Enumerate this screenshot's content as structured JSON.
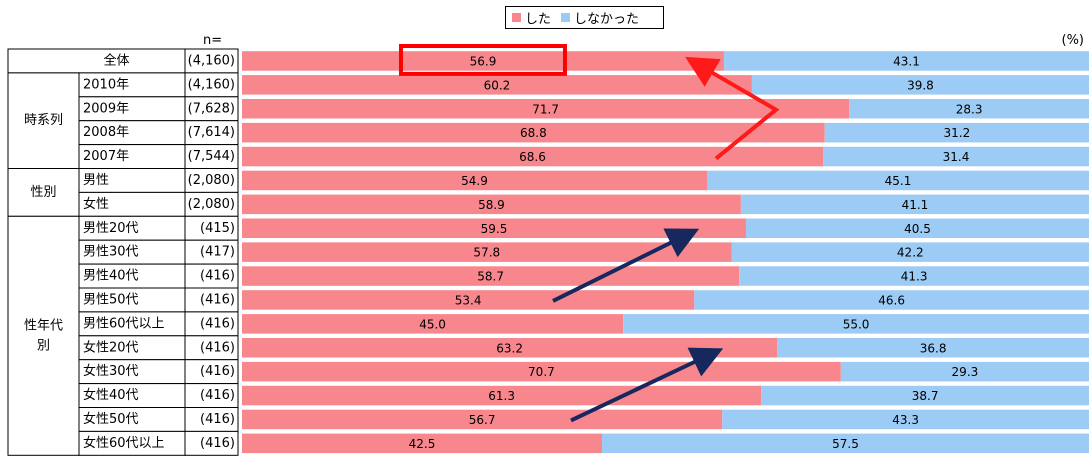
{
  "legend": [
    {
      "label": "した",
      "color": "#f8868d"
    },
    {
      "label": "しなかった",
      "color": "#9ccbf5"
    }
  ],
  "n_label": "n=",
  "unit_label": "(%)",
  "colors": {
    "did": "#f8868d",
    "did_not": "#9ccbf5",
    "highlight": "#ff0000",
    "arrow_red": "#ff1a1a",
    "arrow_navy": "#16285e"
  },
  "groups": [
    {
      "label": "",
      "rows": 1
    },
    {
      "label": "時系列",
      "rows": 4
    },
    {
      "label": "性別",
      "rows": 2
    },
    {
      "label": "性年代別",
      "rows": 10
    }
  ],
  "chart_data": {
    "type": "bar",
    "stacked": true,
    "orientation": "horizontal",
    "unit": "%",
    "categories": [
      "全体",
      "2010年",
      "2009年",
      "2008年",
      "2007年",
      "男性",
      "女性",
      "男性20代",
      "男性30代",
      "男性40代",
      "男性50代",
      "男性60代以上",
      "女性20代",
      "女性30代",
      "女性40代",
      "女性50代",
      "女性60代以上"
    ],
    "n": [
      "(4,160)",
      "(4,160)",
      "(7,628)",
      "(7,614)",
      "(7,544)",
      "(2,080)",
      "(2,080)",
      "(415)",
      "(417)",
      "(416)",
      "(416)",
      "(416)",
      "(416)",
      "(416)",
      "(416)",
      "(416)",
      "(416)"
    ],
    "series": [
      {
        "name": "した",
        "values": [
          56.9,
          60.2,
          71.7,
          68.8,
          68.6,
          54.9,
          58.9,
          59.5,
          57.8,
          58.7,
          53.4,
          45.0,
          63.2,
          70.7,
          61.3,
          56.7,
          42.5
        ]
      },
      {
        "name": "しなかった",
        "values": [
          43.1,
          39.8,
          28.3,
          31.2,
          31.4,
          45.1,
          41.1,
          40.5,
          42.2,
          41.3,
          46.6,
          55.0,
          36.8,
          29.3,
          38.7,
          43.3,
          57.5
        ]
      }
    ],
    "xlim": [
      0,
      100
    ]
  }
}
